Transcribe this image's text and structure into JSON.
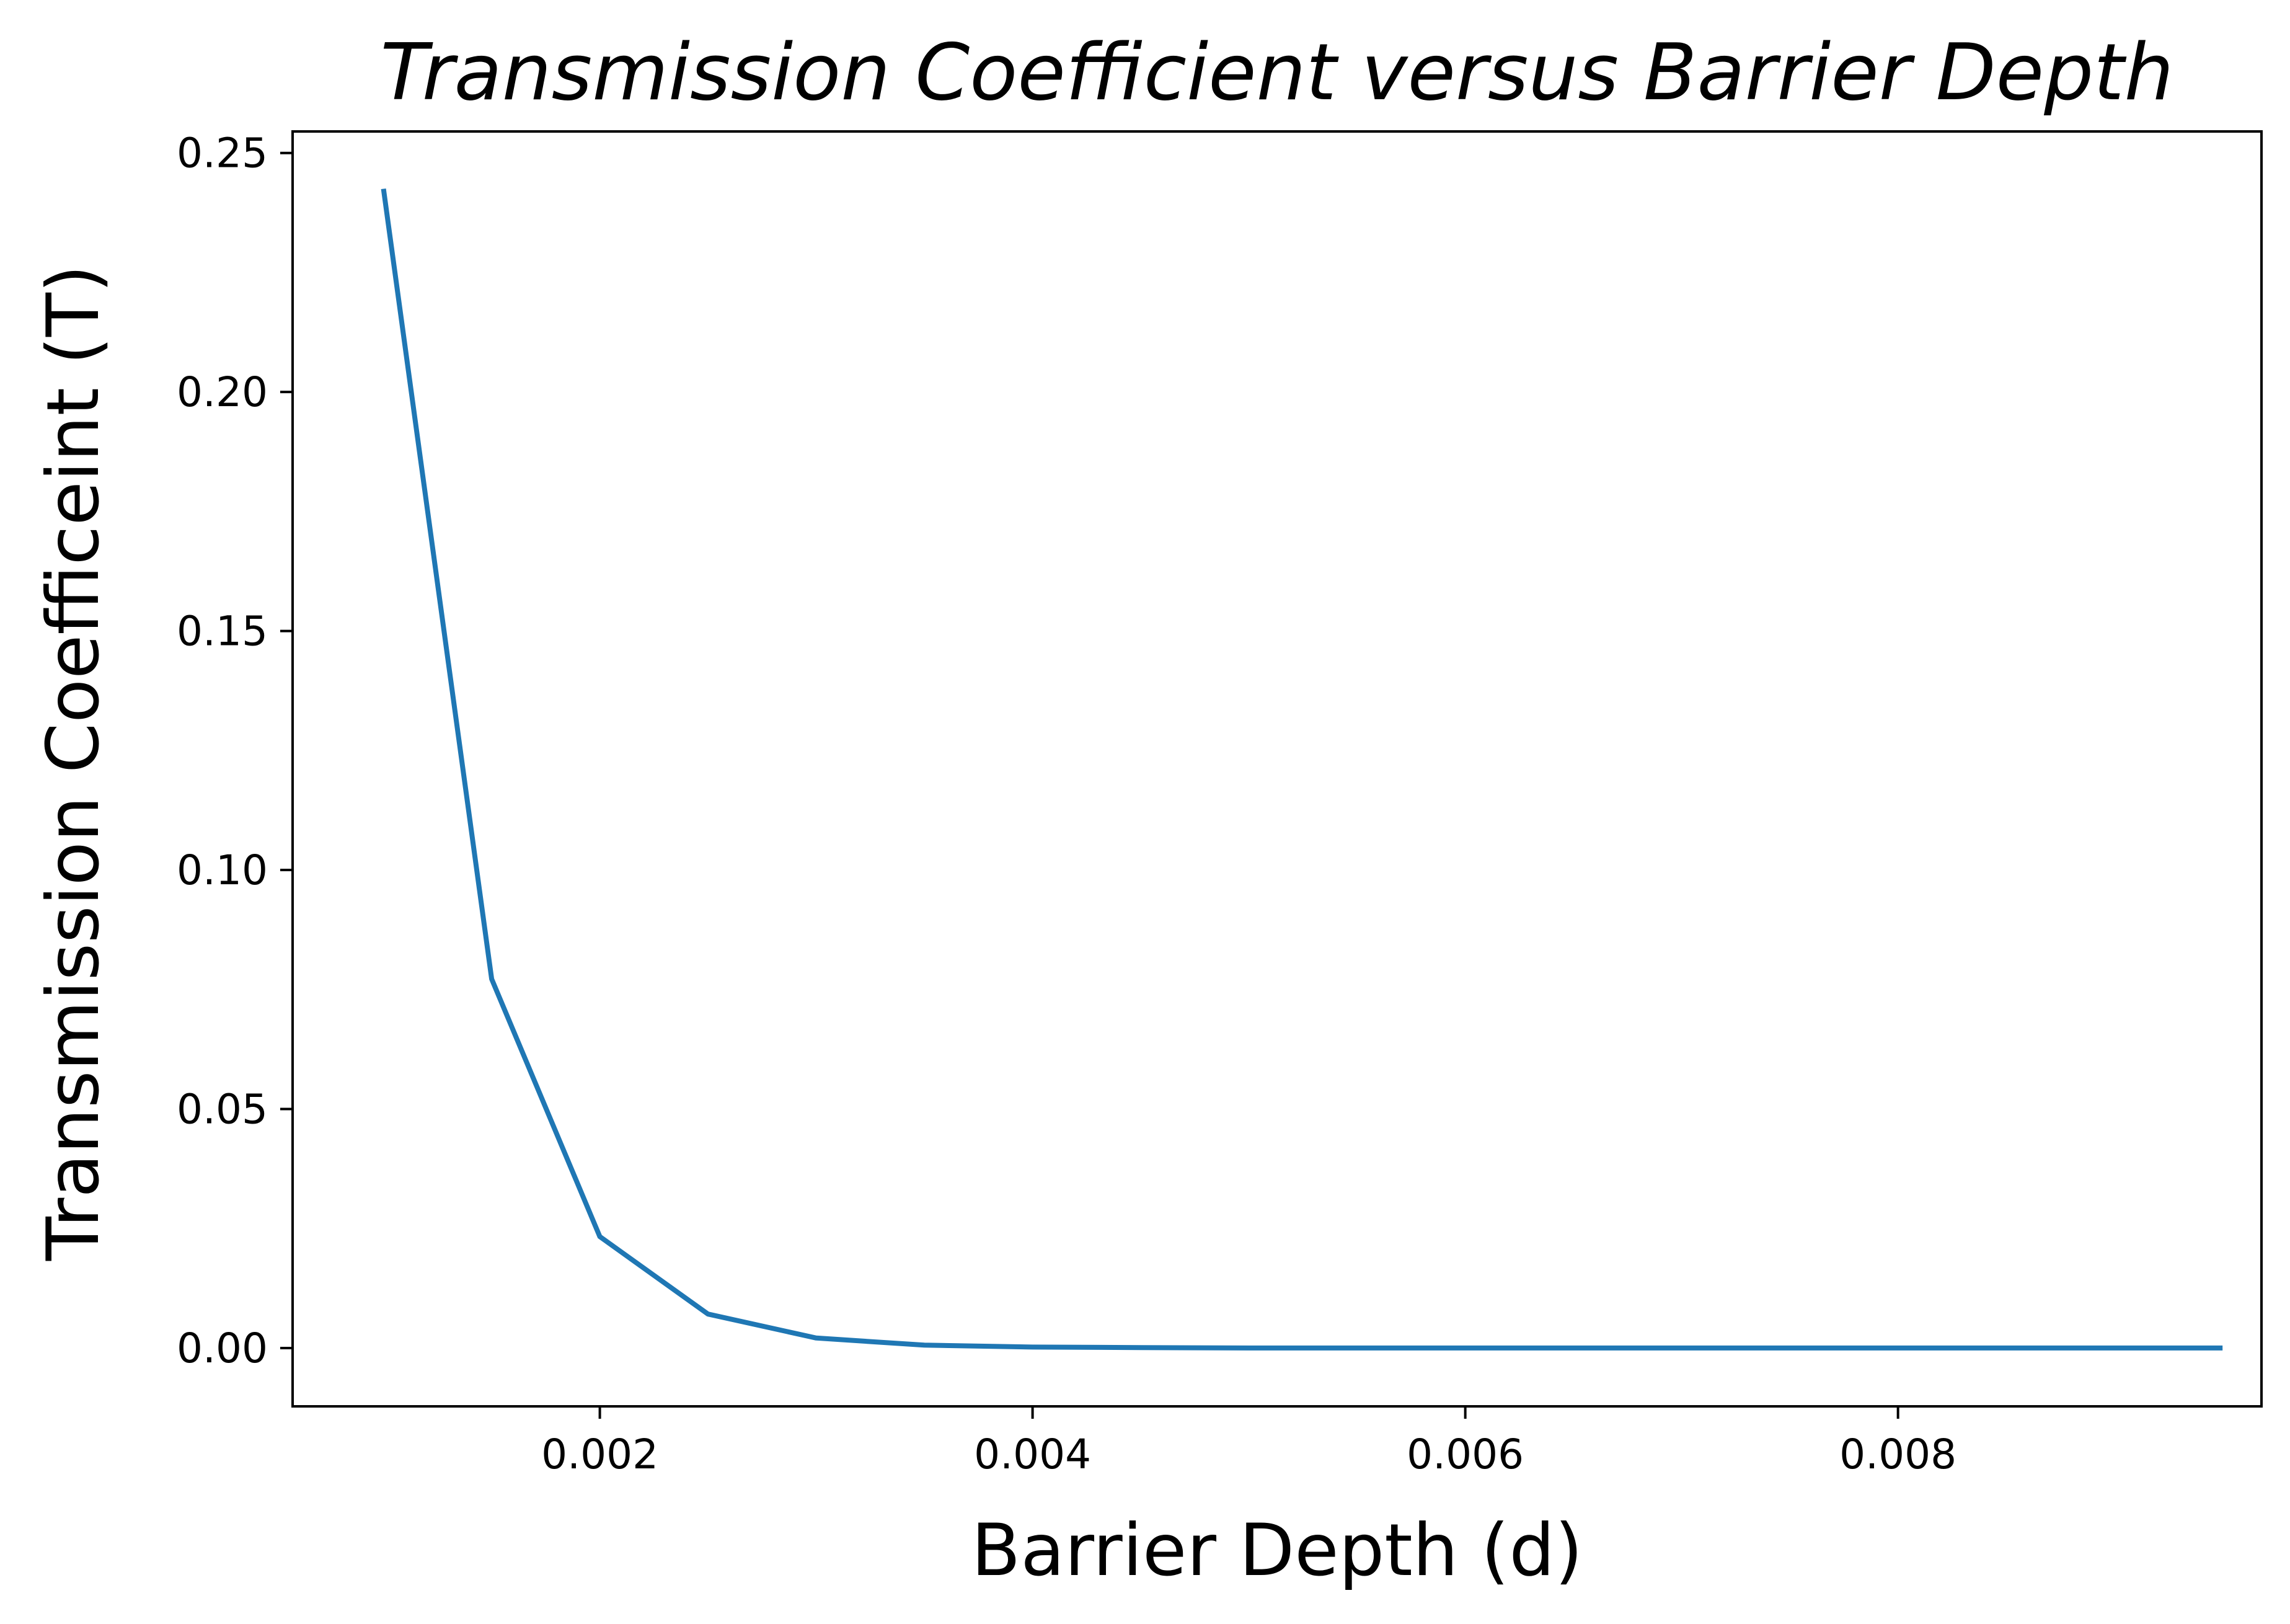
{
  "chart_data": {
    "type": "line",
    "title": "Transmission Coefficient versus Barrier Depth",
    "xlabel": "Barrier Depth (d)",
    "ylabel": "Transmission Coefficeint (T)",
    "xlim": [
      0.00058,
      0.00968
    ],
    "ylim": [
      -0.0122,
      0.2545
    ],
    "xticks": [
      0.002,
      0.004,
      0.006,
      0.008
    ],
    "xtick_labels": [
      "0.002",
      "0.004",
      "0.006",
      "0.008"
    ],
    "yticks": [
      0.0,
      0.05,
      0.1,
      0.15,
      0.2,
      0.25
    ],
    "ytick_labels": [
      "0.00",
      "0.05",
      "0.10",
      "0.15",
      "0.20",
      "0.25"
    ],
    "grid": false,
    "legend": "none",
    "series": [
      {
        "color": "#1f77b4",
        "x": [
          0.001,
          0.0015,
          0.002,
          0.0025,
          0.003,
          0.0035,
          0.004,
          0.0045,
          0.005,
          0.0055,
          0.006,
          0.0065,
          0.007,
          0.0075,
          0.008,
          0.0085,
          0.009,
          0.0095
        ],
        "y": [
          0.2425,
          0.0772,
          0.0233,
          0.0071,
          0.0021,
          0.0006,
          0.0002,
          0.0001,
          0.0,
          0.0,
          0.0,
          0.0,
          0.0,
          0.0,
          0.0,
          0.0,
          0.0,
          0.0
        ]
      }
    ]
  }
}
